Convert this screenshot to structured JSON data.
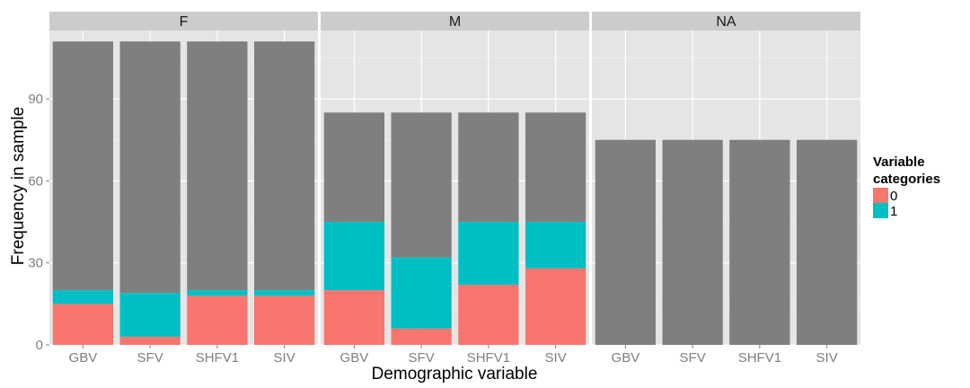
{
  "chart_data": {
    "type": "bar",
    "stacked": true,
    "facet_variable": "gender",
    "panels": [
      "F",
      "M",
      "NA"
    ],
    "categories": [
      "GBV",
      "SFV",
      "SHFV1",
      "SIV"
    ],
    "xlabel": "Demographic variable",
    "ylabel": "Frequency in sample",
    "ylim": [
      0,
      115
    ],
    "yticks": [
      0,
      30,
      60,
      90
    ],
    "grid": true,
    "legend": {
      "title_lines": [
        "Variable",
        "categories"
      ],
      "position": "right",
      "entries": [
        {
          "label": "0",
          "color": "#F8766D"
        },
        {
          "label": "1",
          "color": "#00BFC4"
        }
      ]
    },
    "na_color": "#7F7F7F",
    "series": [
      {
        "name": "0",
        "color": "#F8766D",
        "values": {
          "F": [
            15,
            3,
            18,
            18
          ],
          "M": [
            20,
            6,
            22,
            28
          ],
          "NA": [
            0,
            0,
            0,
            0
          ]
        }
      },
      {
        "name": "1",
        "color": "#00BFC4",
        "values": {
          "F": [
            5,
            16,
            2,
            2
          ],
          "M": [
            25,
            26,
            23,
            17
          ],
          "NA": [
            0,
            0,
            0,
            0
          ]
        }
      },
      {
        "name": "NA",
        "color": "#7F7F7F",
        "values": {
          "F": [
            91,
            92,
            91,
            91
          ],
          "M": [
            40,
            53,
            40,
            40
          ],
          "NA": [
            75,
            75,
            75,
            75
          ]
        }
      }
    ]
  }
}
